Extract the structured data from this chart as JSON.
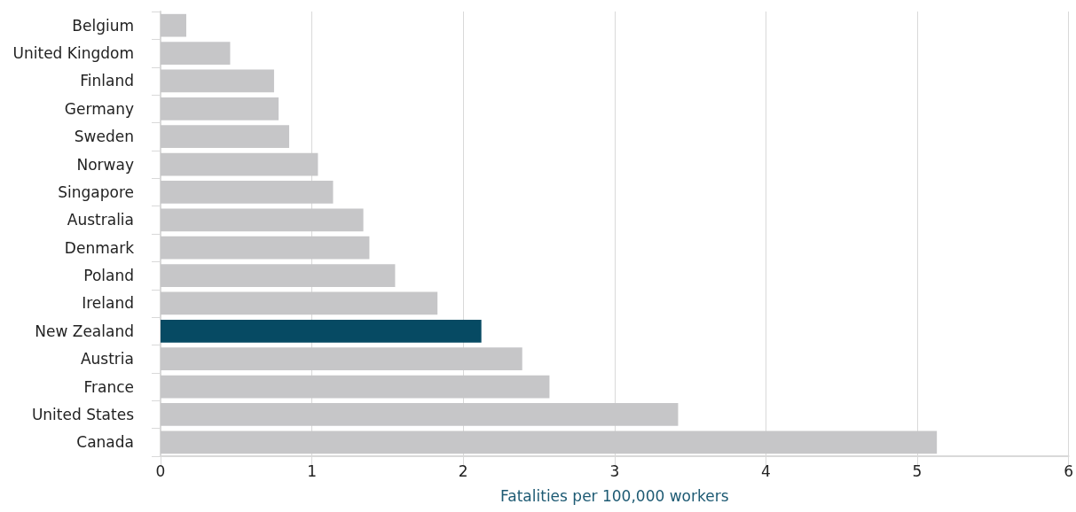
{
  "chart_data": {
    "type": "bar",
    "orientation": "horizontal",
    "xlabel": "Fatalities per 100,000 workers",
    "categories": [
      "Belgium",
      "United Kingdom",
      "Finland",
      "Germany",
      "Sweden",
      "Norway",
      "Singapore",
      "Australia",
      "Denmark",
      "Poland",
      "Ireland",
      "New Zealand",
      "Austria",
      "France",
      "United States",
      "Canada"
    ],
    "values": [
      0.17,
      0.46,
      0.75,
      0.78,
      0.85,
      1.04,
      1.14,
      1.34,
      1.38,
      1.55,
      1.83,
      2.12,
      2.39,
      2.57,
      3.42,
      5.13
    ],
    "colors": [
      "#c6c6c8",
      "#c6c6c8",
      "#c6c6c8",
      "#c6c6c8",
      "#c6c6c8",
      "#c6c6c8",
      "#c6c6c8",
      "#c6c6c8",
      "#c6c6c8",
      "#c6c6c8",
      "#c6c6c8",
      "#064a63",
      "#c6c6c8",
      "#c6c6c8",
      "#c6c6c8",
      "#c6c6c8"
    ],
    "xlim": [
      0,
      6
    ],
    "xticks": [
      0,
      1,
      2,
      3,
      4,
      5,
      6
    ],
    "grid": "x"
  }
}
